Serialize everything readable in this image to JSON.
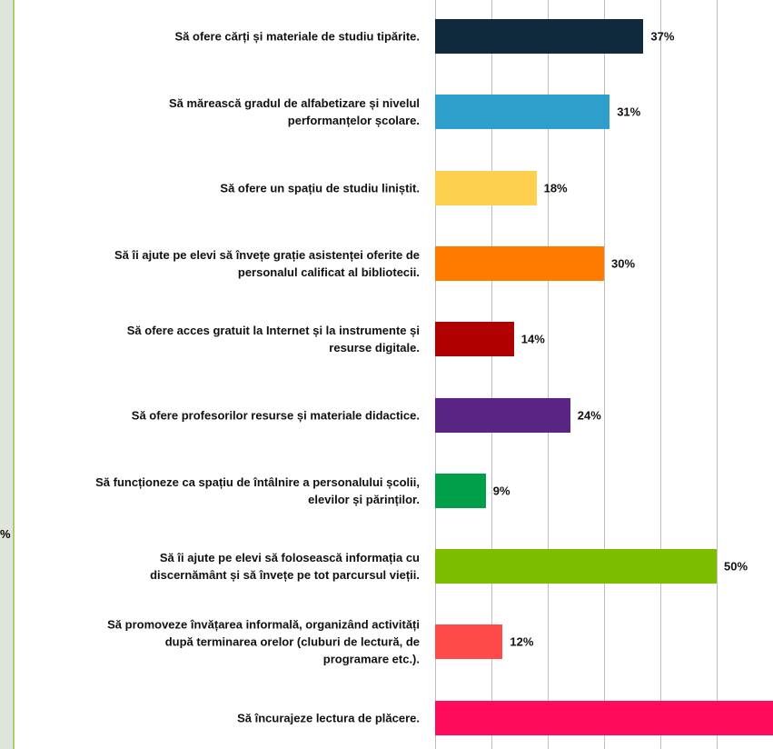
{
  "chart_data": {
    "type": "barh",
    "categories": [
      "Să ofere cărți și materiale de studiu tipărite.",
      "Să mărească gradul de alfabetizare și nivelul\nperformanțelor școlare.",
      "Să ofere un spațiu de studiu liniștit.",
      "Să îi ajute pe elevi să învețe grație asistenței oferite de\npersonalul calificat al bibliotecii.",
      "Să ofere acces gratuit la Internet și la instrumente și\nresurse digitale.",
      "Să ofere profesorilor resurse și materiale didactice.",
      "Să funcționeze ca spațiu de întâlnire a personalului școlii,\nelevilor și părinților.",
      "Să îi ajute pe elevi să folosească informația cu\ndiscernământ și să învețe pe tot parcursul vieții.",
      "Să promoveze învățarea informală, organizând activități\ndupă terminarea orelor (cluburi de lectură, de\nprogramare etc.).",
      "Să încurajeze lectura de plăcere."
    ],
    "values": [
      37,
      31,
      18,
      30,
      14,
      24,
      9,
      50,
      12,
      60
    ],
    "value_labels": [
      "37%",
      "31%",
      "18%",
      "30%",
      "14%",
      "24%",
      "9%",
      "50%",
      "12%",
      null
    ],
    "colors": [
      "#0f2a3d",
      "#2e9fcb",
      "#fdd04f",
      "#ff7b00",
      "#b00000",
      "#5a2485",
      "#00a04b",
      "#7dbd00",
      "#ff4a4a",
      "#ff0b5c"
    ],
    "xlim": [
      0,
      60
    ],
    "xticks": [
      0,
      10,
      20,
      30,
      40,
      50,
      60
    ],
    "grid": true,
    "background_text": "%"
  }
}
